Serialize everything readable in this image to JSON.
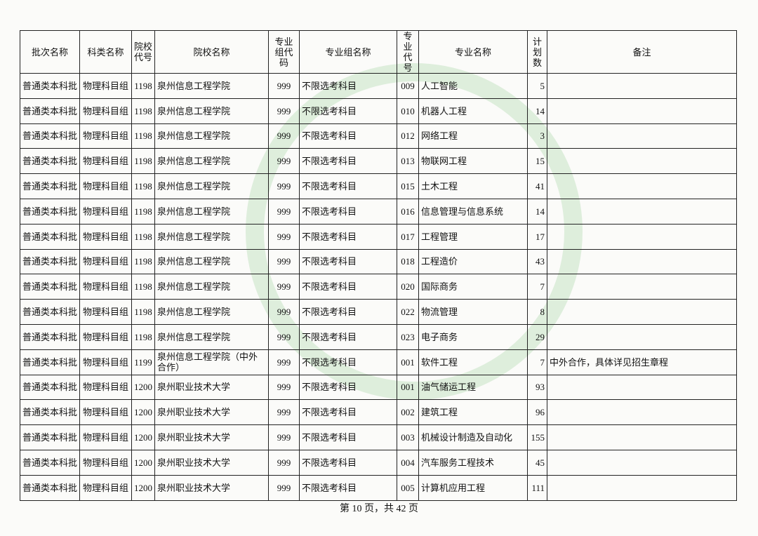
{
  "table": {
    "headers": [
      "批次名称",
      "科类名称",
      "院校代号",
      "院校名称",
      "专业组代码",
      "专业组名称",
      "专业代号",
      "专业名称",
      "计划数",
      "备注"
    ],
    "rows": [
      {
        "batch": "普通类本科批",
        "subject": "物理科目组",
        "school_code": "1198",
        "school": "泉州信息工程学院",
        "group_code": "999",
        "group": "不限选考科目",
        "major_code": "009",
        "major": "人工智能",
        "plan": 5
      },
      {
        "batch": "普通类本科批",
        "subject": "物理科目组",
        "school_code": "1198",
        "school": "泉州信息工程学院",
        "group_code": "999",
        "group": "不限选考科目",
        "major_code": "010",
        "major": "机器人工程",
        "plan": 14
      },
      {
        "batch": "普通类本科批",
        "subject": "物理科目组",
        "school_code": "1198",
        "school": "泉州信息工程学院",
        "group_code": "999",
        "group": "不限选考科目",
        "major_code": "012",
        "major": "网络工程",
        "plan": 3
      },
      {
        "batch": "普通类本科批",
        "subject": "物理科目组",
        "school_code": "1198",
        "school": "泉州信息工程学院",
        "group_code": "999",
        "group": "不限选考科目",
        "major_code": "013",
        "major": "物联网工程",
        "plan": 15
      },
      {
        "batch": "普通类本科批",
        "subject": "物理科目组",
        "school_code": "1198",
        "school": "泉州信息工程学院",
        "group_code": "999",
        "group": "不限选考科目",
        "major_code": "015",
        "major": "土木工程",
        "plan": 41
      },
      {
        "batch": "普通类本科批",
        "subject": "物理科目组",
        "school_code": "1198",
        "school": "泉州信息工程学院",
        "group_code": "999",
        "group": "不限选考科目",
        "major_code": "016",
        "major": "信息管理与信息系统",
        "plan": 14
      },
      {
        "batch": "普通类本科批",
        "subject": "物理科目组",
        "school_code": "1198",
        "school": "泉州信息工程学院",
        "group_code": "999",
        "group": "不限选考科目",
        "major_code": "017",
        "major": "工程管理",
        "plan": 17
      },
      {
        "batch": "普通类本科批",
        "subject": "物理科目组",
        "school_code": "1198",
        "school": "泉州信息工程学院",
        "group_code": "999",
        "group": "不限选考科目",
        "major_code": "018",
        "major": "工程造价",
        "plan": 43
      },
      {
        "batch": "普通类本科批",
        "subject": "物理科目组",
        "school_code": "1198",
        "school": "泉州信息工程学院",
        "group_code": "999",
        "group": "不限选考科目",
        "major_code": "020",
        "major": "国际商务",
        "plan": 7
      },
      {
        "batch": "普通类本科批",
        "subject": "物理科目组",
        "school_code": "1198",
        "school": "泉州信息工程学院",
        "group_code": "999",
        "group": "不限选考科目",
        "major_code": "022",
        "major": "物流管理",
        "plan": 8
      },
      {
        "batch": "普通类本科批",
        "subject": "物理科目组",
        "school_code": "1198",
        "school": "泉州信息工程学院",
        "group_code": "999",
        "group": "不限选考科目",
        "major_code": "023",
        "major": "电子商务",
        "plan": 29
      },
      {
        "batch": "普通类本科批",
        "subject": "物理科目组",
        "school_code": "1199",
        "school": "泉州信息工程学院（中外合作）",
        "group_code": "999",
        "group": "不限选考科目",
        "major_code": "001",
        "major": "软件工程",
        "plan": 7,
        "remark": "中外合作，具体详见招生章程"
      },
      {
        "batch": "普通类本科批",
        "subject": "物理科目组",
        "school_code": "1200",
        "school": "泉州职业技术大学",
        "group_code": "999",
        "group": "不限选考科目",
        "major_code": "001",
        "major": "油气储运工程",
        "plan": 93
      },
      {
        "batch": "普通类本科批",
        "subject": "物理科目组",
        "school_code": "1200",
        "school": "泉州职业技术大学",
        "group_code": "999",
        "group": "不限选考科目",
        "major_code": "002",
        "major": "建筑工程",
        "plan": 96
      },
      {
        "batch": "普通类本科批",
        "subject": "物理科目组",
        "school_code": "1200",
        "school": "泉州职业技术大学",
        "group_code": "999",
        "group": "不限选考科目",
        "major_code": "003",
        "major": "机械设计制造及自动化",
        "plan": 155
      },
      {
        "batch": "普通类本科批",
        "subject": "物理科目组",
        "school_code": "1200",
        "school": "泉州职业技术大学",
        "group_code": "999",
        "group": "不限选考科目",
        "major_code": "004",
        "major": "汽车服务工程技术",
        "plan": 45
      },
      {
        "batch": "普通类本科批",
        "subject": "物理科目组",
        "school_code": "1200",
        "school": "泉州职业技术大学",
        "group_code": "999",
        "group": "不限选考科目",
        "major_code": "005",
        "major": "计算机应用工程",
        "plan": 111
      }
    ]
  },
  "footer": "第 10 页，共 42 页"
}
